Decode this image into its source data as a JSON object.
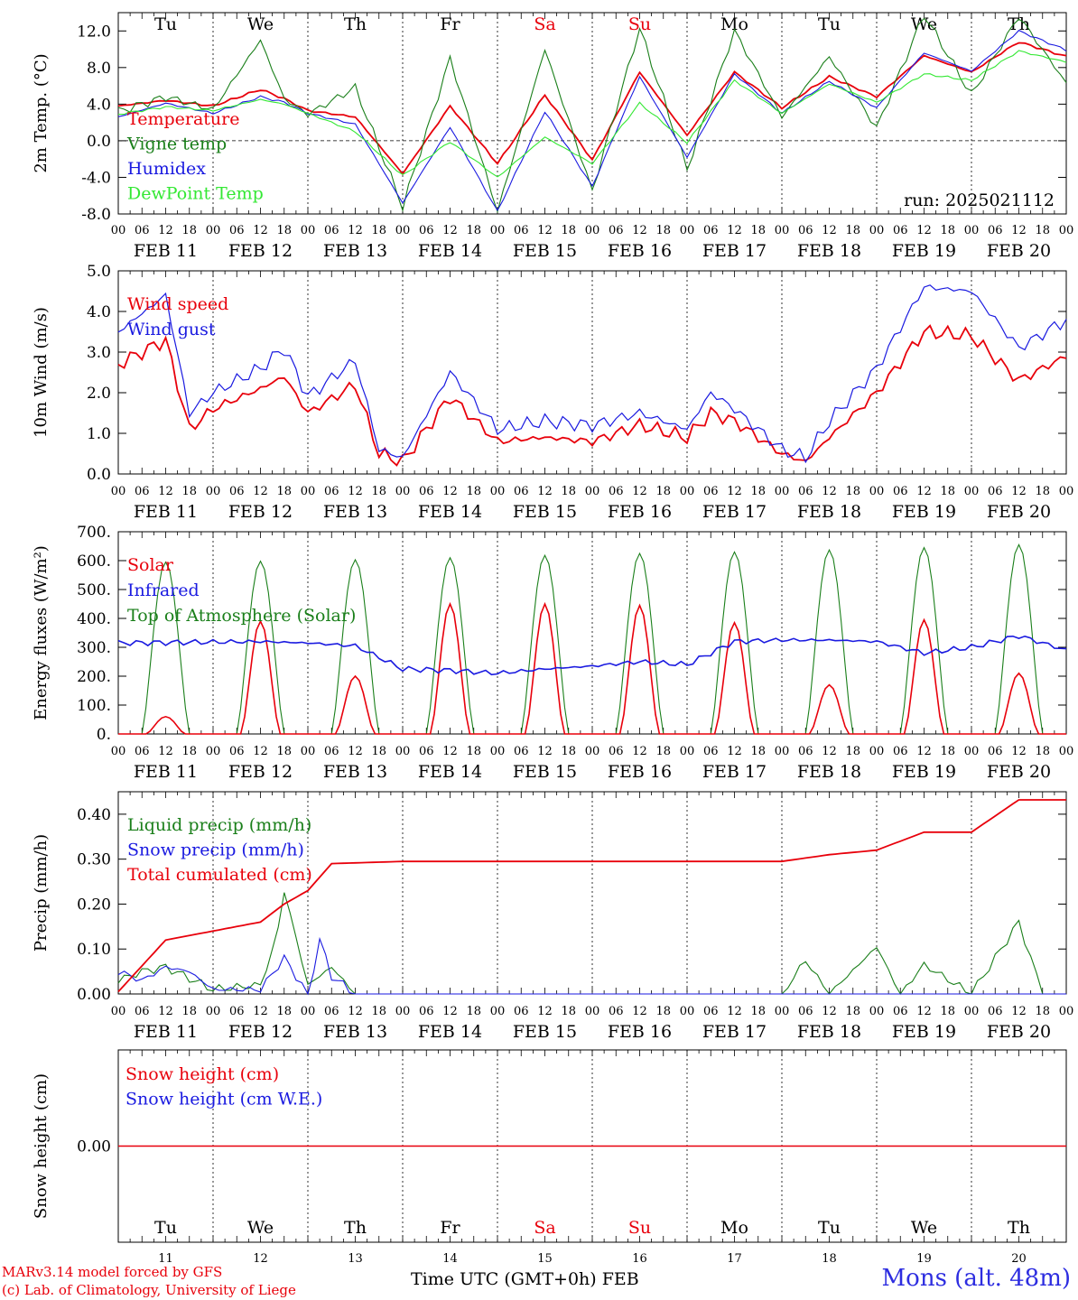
{
  "colors": {
    "red": "#e8000b",
    "green": "#1a7f1a",
    "blue": "#1a1ae0",
    "light_green": "#33e833",
    "weekend": "#e8000b",
    "axis": "#000000"
  },
  "day_labels": [
    "Tu",
    "We",
    "Th",
    "Fr",
    "Sa",
    "Su",
    "Mo",
    "Tu",
    "We",
    "Th"
  ],
  "weekend_days": [
    "Sa",
    "Su"
  ],
  "date_labels": [
    "FEB 11",
    "FEB 12",
    "FEB 13",
    "FEB 14",
    "FEB 15",
    "FEB 16",
    "FEB 17",
    "FEB 18",
    "FEB 19",
    "FEB 20"
  ],
  "hour_ticks": [
    "00",
    "06",
    "12",
    "18"
  ],
  "hour_end_tick": "00",
  "day_numbers": [
    "11",
    "12",
    "13",
    "14",
    "15",
    "16",
    "17",
    "18",
    "19",
    "20"
  ],
  "footer": {
    "model": "MARv3.14 model forced by GFS",
    "credit": "(c) Lab. of Climatology, University of Liege",
    "axis_title": "Time UTC (GMT+0h) FEB",
    "station": "Mons (alt. 48m)"
  },
  "chart_data": [
    {
      "type": "line",
      "ylabel": "2m Temp. (°C)",
      "ylim": [
        -8,
        14
      ],
      "yticks": [
        "-8.0",
        "-4.0",
        "0.0",
        "4.0",
        "8.0",
        "12.0"
      ],
      "annotation": "run: 2025021112",
      "x": [
        0,
        12,
        24,
        36,
        42,
        48,
        60,
        72,
        84,
        96,
        108,
        120,
        132,
        144,
        156,
        168,
        180,
        192,
        204,
        216,
        228,
        240
      ],
      "series": [
        {
          "name": "Temperature",
          "color": "red",
          "values": [
            3.8,
            4.4,
            3.8,
            5.6,
            4.6,
            3.3,
            2.6,
            -3.6,
            3.8,
            -2.5,
            5.0,
            -2.1,
            7.5,
            0.6,
            7.5,
            3.6,
            7.0,
            4.8,
            9.3,
            7.5,
            10.8,
            9.2
          ]
        },
        {
          "name": "Vigne temp",
          "color": "green",
          "values": [
            3.2,
            4.8,
            3.4,
            11.0,
            4.6,
            2.9,
            5.8,
            -7.2,
            9.0,
            -7.7,
            10.0,
            -5.5,
            12.3,
            -3.1,
            12.0,
            2.6,
            9.2,
            1.4,
            13.8,
            5.0,
            13.6,
            6.3
          ]
        },
        {
          "name": "Humidex",
          "color": "blue",
          "values": [
            2.6,
            4.1,
            3.0,
            4.8,
            4.2,
            3.0,
            1.8,
            -6.8,
            1.5,
            -7.7,
            3.2,
            -5.0,
            7.0,
            -1.8,
            7.3,
            3.0,
            6.5,
            3.6,
            9.6,
            7.6,
            12.0,
            9.9
          ]
        },
        {
          "name": "DewPoint Temp",
          "color": "light_green",
          "values": [
            2.9,
            3.7,
            3.3,
            4.5,
            4.0,
            3.0,
            1.0,
            -3.8,
            -0.1,
            -4.0,
            0.4,
            -2.5,
            4.1,
            -0.2,
            6.6,
            3.0,
            6.2,
            4.2,
            7.3,
            6.6,
            9.8,
            8.6
          ]
        }
      ]
    },
    {
      "type": "line",
      "ylabel": "10m Wind (m/s)",
      "ylim": [
        0,
        5
      ],
      "yticks": [
        "0.0",
        "1.0",
        "2.0",
        "3.0",
        "4.0",
        "5.0"
      ],
      "x": [
        0,
        12,
        18,
        24,
        36,
        42,
        48,
        60,
        66,
        72,
        84,
        96,
        108,
        120,
        132,
        144,
        150,
        156,
        168,
        174,
        180,
        192,
        204,
        216,
        228,
        240
      ],
      "series": [
        {
          "name": "Wind speed",
          "color": "red",
          "values": [
            2.7,
            3.3,
            1.1,
            1.6,
            2.1,
            2.4,
            1.5,
            2.2,
            0.5,
            0.3,
            1.9,
            0.8,
            0.9,
            0.8,
            1.2,
            0.9,
            1.5,
            1.3,
            0.5,
            0.3,
            0.9,
            2.0,
            3.5,
            3.4,
            2.3,
            2.9
          ]
        },
        {
          "name": "Wind gust",
          "color": "blue",
          "values": [
            3.5,
            4.4,
            1.5,
            2.0,
            2.6,
            3.1,
            1.9,
            2.8,
            0.6,
            0.4,
            2.5,
            1.1,
            1.3,
            1.2,
            1.5,
            1.1,
            2.0,
            1.6,
            0.6,
            0.4,
            1.3,
            2.6,
            4.6,
            4.5,
            3.1,
            3.8
          ]
        }
      ]
    },
    {
      "type": "line",
      "ylabel": "Energy fluxes (W/m²)",
      "ylim": [
        0,
        700
      ],
      "yticks": [
        "0.",
        "100.",
        "200.",
        "300.",
        "400.",
        "500.",
        "600.",
        "700."
      ],
      "series": [
        {
          "name": "Solar",
          "color": "red",
          "daily_peak": [
            60,
            390,
            200,
            450,
            450,
            445,
            385,
            170,
            395,
            210
          ]
        },
        {
          "name": "Infrared",
          "color": "blue",
          "x": [
            0,
            24,
            36,
            48,
            60,
            72,
            84,
            96,
            108,
            120,
            132,
            144,
            156,
            168,
            180,
            192,
            204,
            216,
            228,
            240
          ],
          "values": [
            315,
            318,
            320,
            315,
            305,
            225,
            220,
            210,
            225,
            235,
            250,
            240,
            320,
            325,
            325,
            320,
            280,
            300,
            340,
            290
          ]
        },
        {
          "name": "Top of Atmosphere (Solar)",
          "color": "green",
          "daily_peak": [
            595,
            598,
            603,
            610,
            618,
            625,
            630,
            637,
            645,
            655
          ]
        }
      ]
    },
    {
      "type": "line",
      "ylabel": "Precip (mm/h)",
      "ylim": [
        0,
        0.45
      ],
      "yticks": [
        "0.00",
        "0.10",
        "0.20",
        "0.30",
        "0.40"
      ],
      "series": [
        {
          "name": "Liquid precip (mm/h)",
          "color": "green",
          "x": [
            0,
            6,
            12,
            24,
            36,
            40,
            42,
            48,
            54,
            60,
            168,
            174,
            180,
            192,
            198,
            204,
            216,
            228,
            234,
            240
          ],
          "values": [
            0.03,
            0.05,
            0.06,
            0.01,
            0.02,
            0.12,
            0.23,
            0.02,
            0.06,
            0.0,
            0.0,
            0.075,
            0.0,
            0.105,
            0.0,
            0.065,
            0.0,
            0.16,
            0.0,
            0.0
          ]
        },
        {
          "name": "Snow precip (mm/h)",
          "color": "blue",
          "x": [
            0,
            6,
            12,
            18,
            24,
            36,
            42,
            48,
            51,
            54,
            60,
            72,
            240
          ],
          "values": [
            0.05,
            0.03,
            0.06,
            0.05,
            0.01,
            0.01,
            0.08,
            0.0,
            0.12,
            0.04,
            0.0,
            0.0,
            0.0
          ]
        },
        {
          "name": "Total cumulated (cm)",
          "color": "red",
          "x": [
            0,
            12,
            24,
            36,
            42,
            48,
            54,
            72,
            168,
            180,
            192,
            204,
            216,
            228,
            240
          ],
          "values": [
            0.005,
            0.12,
            0.14,
            0.16,
            0.2,
            0.23,
            0.29,
            0.295,
            0.295,
            0.31,
            0.32,
            0.36,
            0.36,
            0.432,
            0.432
          ]
        }
      ]
    },
    {
      "type": "line",
      "ylabel": "Snow height (cm)",
      "ylim": [
        -1,
        1
      ],
      "yticks": [
        "0.00"
      ],
      "series": [
        {
          "name": "Snow height (cm)",
          "color": "red",
          "x": [
            0,
            240
          ],
          "values": [
            0,
            0
          ]
        },
        {
          "name": "Snow height (cm W.E.)",
          "color": "blue",
          "x": [],
          "values": []
        }
      ]
    }
  ]
}
